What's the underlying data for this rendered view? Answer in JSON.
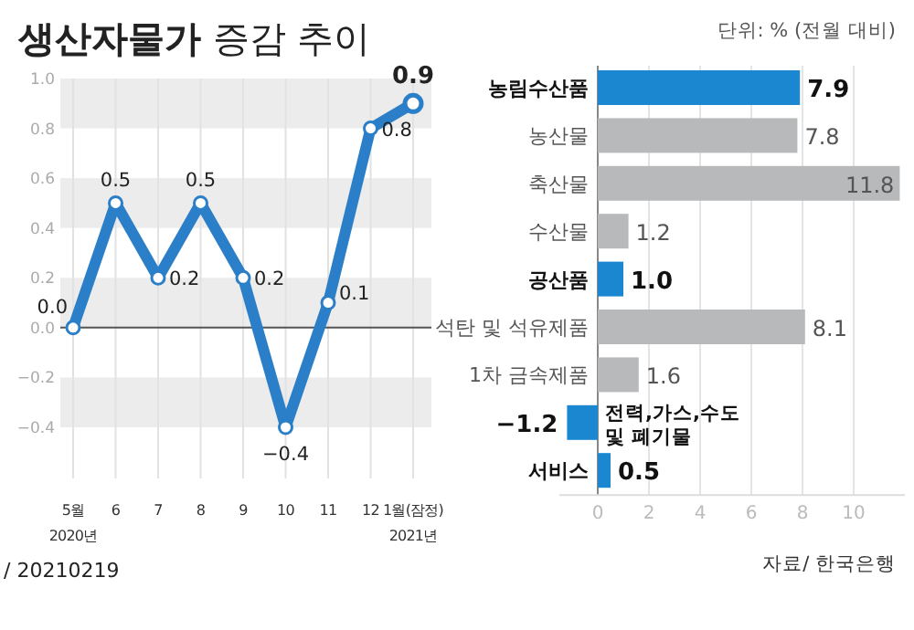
{
  "chart_data": [
    {
      "type": "line",
      "title": "**생산자물가** 증감 추이",
      "categories": [
        "5월\n2020년",
        "6",
        "7",
        "8",
        "9",
        "10",
        "11",
        "12",
        "1월(잠정)\n2021년"
      ],
      "series": [
        {
          "color": "#2b7fc8",
          "values": [
            0.0,
            0.5,
            0.2,
            0.5,
            0.2,
            -0.4,
            0.1,
            0.8,
            0.9
          ]
        }
      ],
      "ylim": [
        -0.4,
        1.0
      ],
      "yticks": [
        {
          "value": -0.4,
          "label": "−0.4"
        },
        {
          "value": -0.2,
          "label": "−0.2"
        },
        {
          "value": 0,
          "label": "0.0"
        },
        {
          "value": 0.2,
          "label": "0.2"
        },
        {
          "value": 0.4,
          "label": "0.4"
        },
        {
          "value": 0.6,
          "label": "0.6"
        },
        {
          "value": 0.8,
          "label": "0.8"
        },
        {
          "value": 1,
          "label": "1.0"
        }
      ],
      "grid": true,
      "marker": "circle",
      "value_labels": [
        "0.0",
        "0.5",
        "0.2",
        "0.5",
        "0.2",
        "−0.4",
        "0.1",
        "0.8",
        "0.9"
      ],
      "annotations": [
        "/ 20210219"
      ]
    },
    {
      "type": "bar",
      "orientation": "horizontal",
      "categories": [
        "농림수산품",
        "농산물",
        "축산물",
        "수산물",
        "공산품",
        "석탄 및 석유제품",
        "1차 금속제품",
        "전력,가스,수도\n및 폐기물",
        "서비스"
      ],
      "values": [
        7.9,
        7.8,
        11.8,
        1.2,
        1.0,
        8.1,
        1.6,
        -1.2,
        0.5
      ],
      "colors": [
        "#1a87d0",
        "#b7b9bb",
        "#b7b9bb",
        "#b7b9bb",
        "#1a87d0",
        "#b7b9bb",
        "#b7b9bb",
        "#1a87d0",
        "#1a87d0"
      ],
      "xlim": [
        -1.5,
        12
      ],
      "xticks": [
        0,
        2,
        4,
        6,
        8,
        10
      ],
      "grid": "x",
      "value_labels": [
        "7.9",
        "7.8",
        "11.8",
        "1.2",
        "1.0",
        "8.1",
        "1.6",
        "−1.2",
        "0.5"
      ],
      "annotations": [
        "단위: % (전월 대비)",
        "자료/ 한국은행"
      ]
    }
  ]
}
